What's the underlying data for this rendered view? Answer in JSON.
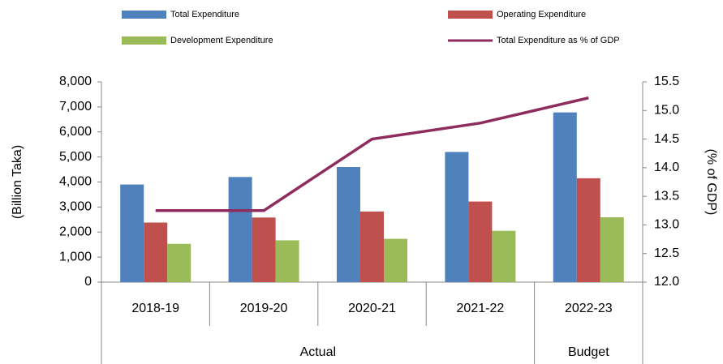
{
  "chart_data": {
    "type": "bar",
    "categories": [
      "2018-19",
      "2019-20",
      "2020-21",
      "2021-22",
      "2022-23"
    ],
    "groups": [
      {
        "label": "Actual",
        "span": 4
      },
      {
        "label": "Budget",
        "span": 1
      }
    ],
    "series": [
      {
        "name": "Total Expenditure",
        "color": "#4f81bd",
        "values": [
          3900,
          4200,
          4600,
          5200,
          6780
        ]
      },
      {
        "name": "Operating Expenditure",
        "color": "#c0504d",
        "values": [
          2380,
          2580,
          2820,
          3220,
          4150
        ]
      },
      {
        "name": "Development Expenditure",
        "color": "#9bbb59",
        "values": [
          1530,
          1670,
          1730,
          2050,
          2590
        ]
      },
      {
        "name": "Total Expenditure as % of GDP",
        "color": "#8e2c5d",
        "type": "line",
        "axis": "y2",
        "values": [
          13.25,
          13.25,
          14.5,
          14.78,
          15.22
        ]
      }
    ],
    "ylabel": "(Billion Taka)",
    "y2label": "(% of GDP)",
    "ylim": [
      0,
      8000
    ],
    "yticks": [
      0,
      {
        "value": 1000,
        "label": "1,000"
      },
      {
        "value": 2000,
        "label": "2,000"
      },
      {
        "value": 3000,
        "label": "3,000"
      },
      {
        "value": 4000,
        "label": "4,000"
      },
      {
        "value": 5000,
        "label": "5,000"
      },
      {
        "value": 6000,
        "label": "6,000"
      },
      {
        "value": 7000,
        "label": "7,000"
      },
      {
        "value": 8000,
        "label": "8,000"
      }
    ],
    "y2lim": [
      12,
      15.5
    ],
    "y2ticks": [
      {
        "value": 12,
        "label": "12.0"
      },
      12.5,
      {
        "value": 13,
        "label": "13.0"
      },
      13.5,
      {
        "value": 14,
        "label": "14.0"
      },
      14.5,
      {
        "value": 15,
        "label": "15.0"
      },
      15.5
    ],
    "grid": false
  }
}
